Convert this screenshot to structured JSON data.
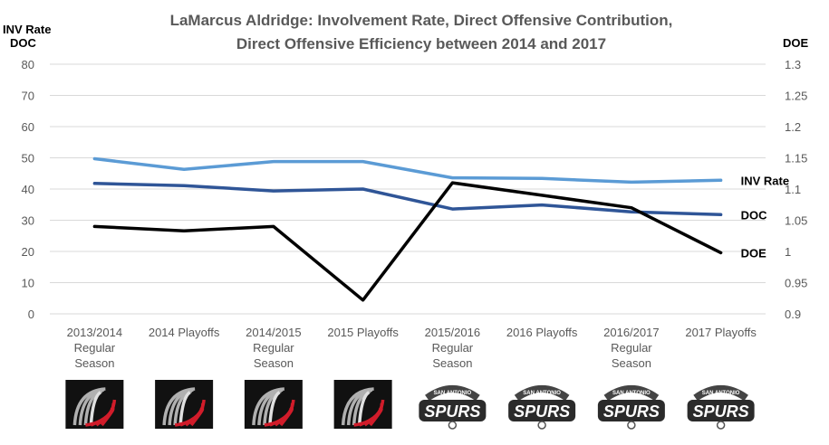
{
  "chart_data": {
    "type": "line",
    "title_lines": [
      "LaMarcus  Aldridge: Involvement Rate, Direct Offensive Contribution,",
      "Direct Offensive Efficiency between 2014 and 2017"
    ],
    "left_axis_title": [
      "INV Rate",
      "DOC"
    ],
    "right_axis_title": "DOE",
    "categories": [
      [
        "2013/2014",
        "Regular",
        "Season"
      ],
      [
        "2014 Playoffs"
      ],
      [
        "2014/2015",
        "Regular",
        "Season"
      ],
      [
        "2015 Playoffs"
      ],
      [
        "2015/2016",
        "Regular",
        "Season"
      ],
      [
        "2016 Playoffs"
      ],
      [
        "2016/2017",
        "Regular",
        "Season"
      ],
      [
        "2017 Playoffs"
      ]
    ],
    "left_ylim": [
      0,
      80
    ],
    "left_ticks": [
      "0",
      "10",
      "20",
      "30",
      "40",
      "50",
      "60",
      "70",
      "80"
    ],
    "right_ylim": [
      0.9,
      1.3
    ],
    "right_ticks": [
      "0.9",
      "0.95",
      "1",
      "1.05",
      "1.1",
      "1.15",
      "1.2",
      "1.25",
      "1.3"
    ],
    "grid": true,
    "series": [
      {
        "name": "INV Rate",
        "axis": "left",
        "color": "#5B9BD5",
        "values": [
          49.7,
          46.3,
          48.8,
          48.8,
          43.6,
          43.4,
          42.2,
          42.8
        ]
      },
      {
        "name": "DOC",
        "axis": "left",
        "color": "#2F5597",
        "values": [
          41.8,
          41.1,
          39.4,
          40.0,
          33.6,
          34.9,
          32.7,
          31.8
        ]
      },
      {
        "name": "DOE",
        "axis": "right",
        "color": "#000000",
        "values": [
          1.04,
          1.033,
          1.04,
          0.922,
          1.11,
          1.09,
          1.07,
          0.998
        ]
      }
    ],
    "team_logos": [
      "trail-blazers",
      "trail-blazers",
      "trail-blazers",
      "trail-blazers",
      "spurs",
      "spurs",
      "spurs",
      "spurs"
    ]
  },
  "logo_text": {
    "spurs_main": "SPURS",
    "spurs_arc": "SAN ANTONIO"
  }
}
